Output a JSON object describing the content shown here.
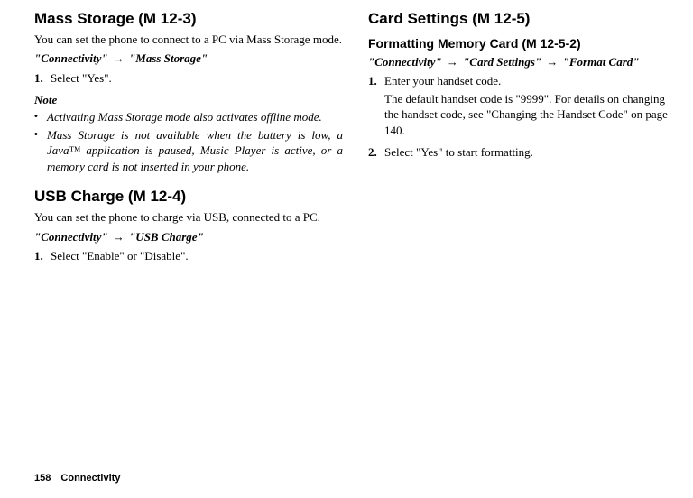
{
  "left": {
    "mass_storage": {
      "title": "Mass Storage (M 12-3)",
      "intro": "You can set the phone to connect to a PC via Mass Storage mode.",
      "bc1": "\"Connectivity\"",
      "bc2": "\"Mass Storage\"",
      "step1_num": "1.",
      "step1": "Select \"Yes\".",
      "note_label": "Note",
      "bullet1": "Activating Mass Storage mode also activates offline mode.",
      "bullet2": "Mass Storage is not available when the battery is low, a Java™ application is paused, Music Player is active, or a memory card is not inserted in your phone."
    },
    "usb_charge": {
      "title": "USB Charge (M 12-4)",
      "intro": "You can set the phone to charge via USB, connected to a PC.",
      "bc1": "\"Connectivity\"",
      "bc2": "\"USB Charge\"",
      "step1_num": "1.",
      "step1": "Select \"Enable\" or \"Disable\"."
    }
  },
  "right": {
    "card_settings": {
      "title": "Card Settings (M 12-5)",
      "sub_title": "Formatting Memory Card (M 12-5-2)",
      "bc1": "\"Connectivity\"",
      "bc2": "\"Card Settings\"",
      "bc3": "\"Format Card\"",
      "step1_num": "1.",
      "step1": "Enter your handset code.",
      "step1_extra": "The default handset code is \"9999\". For details on changing the handset code, see \"Changing the Handset Code\" on page 140.",
      "step2_num": "2.",
      "step2": "Select \"Yes\" to start formatting."
    }
  },
  "footer": {
    "page": "158",
    "chapter": "Connectivity"
  },
  "glyph": {
    "arrow": "→",
    "bullet": "•"
  }
}
